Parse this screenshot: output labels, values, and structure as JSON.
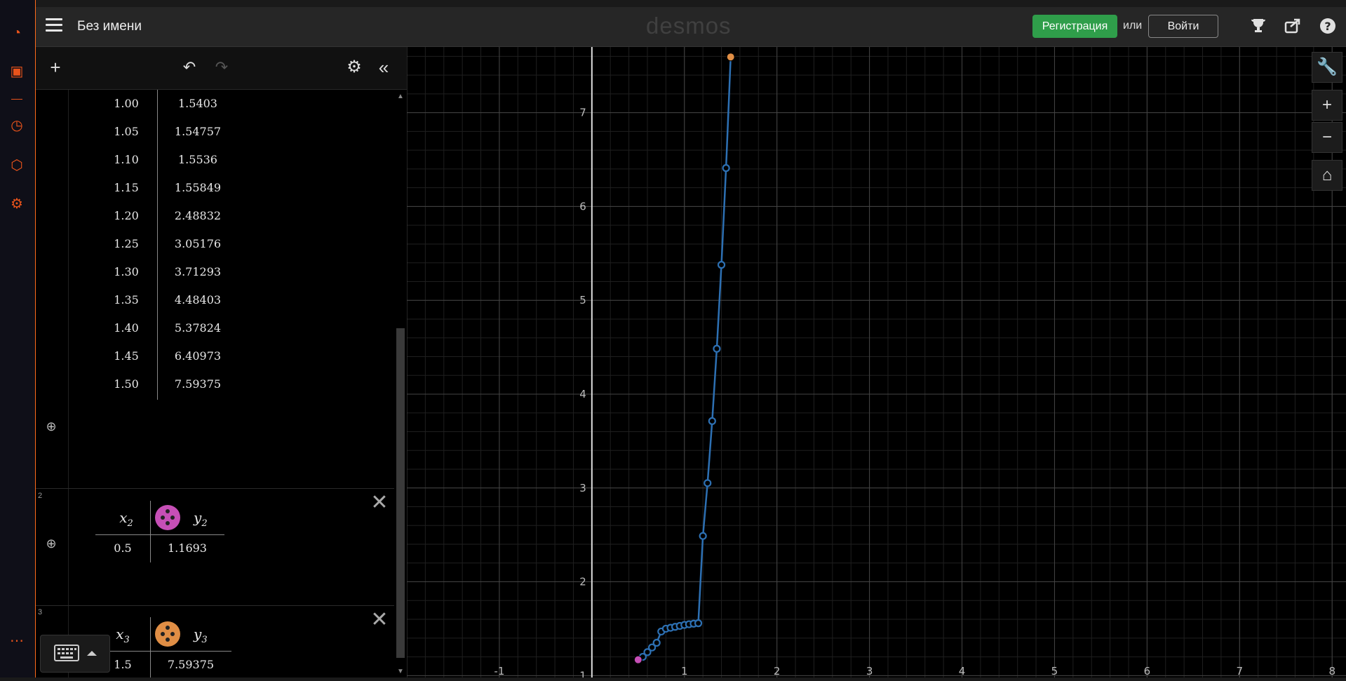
{
  "side_rail": {
    "icons": [
      "speedometer-icon",
      "twitch-icon",
      "history-icon",
      "cube-icon",
      "gear-icon",
      "more-icon"
    ]
  },
  "topbar": {
    "doc_title": "Без имени",
    "brand": "desmos",
    "signup_label": "Регистрация",
    "or_label": "или",
    "login_label": "Войти"
  },
  "expr1": {
    "rows": [
      {
        "x": "1.00",
        "y": "1.5403"
      },
      {
        "x": "1.05",
        "y": "1.54757"
      },
      {
        "x": "1.10",
        "y": "1.5536"
      },
      {
        "x": "1.15",
        "y": "1.55849"
      },
      {
        "x": "1.20",
        "y": "2.48832"
      },
      {
        "x": "1.25",
        "y": "3.05176"
      },
      {
        "x": "1.30",
        "y": "3.71293"
      },
      {
        "x": "1.35",
        "y": "4.48403"
      },
      {
        "x": "1.40",
        "y": "5.37824"
      },
      {
        "x": "1.45",
        "y": "6.40973"
      },
      {
        "x": "1.50",
        "y": "7.59375"
      }
    ]
  },
  "expr2": {
    "number": "2",
    "x_header": "x",
    "x_sub": "2",
    "y_header": "y",
    "y_sub": "2",
    "color": "#c64fb6",
    "row": {
      "x": "0.5",
      "y": "1.1693"
    }
  },
  "expr3": {
    "number": "3",
    "x_header": "x",
    "x_sub": "3",
    "y_header": "y",
    "y_sub": "3",
    "color": "#e08e45",
    "row": {
      "x": "1.5",
      "y": "7.59375"
    }
  },
  "chart_data": {
    "type": "scatter",
    "x_ticks": [
      "-1",
      "1",
      "2",
      "3",
      "4",
      "5",
      "6",
      "7",
      "8"
    ],
    "y_ticks": [
      "1",
      "2",
      "3",
      "4",
      "5",
      "6",
      "7"
    ],
    "xlim": [
      -2,
      8.15
    ],
    "ylim": [
      0.98,
      7.7
    ],
    "grid": true,
    "series": [
      {
        "color": "#2d70b3",
        "connected": true,
        "x": [
          0.55,
          0.6,
          0.65,
          0.7,
          0.75,
          0.8,
          0.85,
          0.9,
          0.95,
          1.0,
          1.05,
          1.1,
          1.15,
          1.2,
          1.25,
          1.3,
          1.35,
          1.4,
          1.45,
          1.5
        ],
        "y": [
          1.2,
          1.25,
          1.3,
          1.35,
          1.47,
          1.5,
          1.51,
          1.52,
          1.53,
          1.5403,
          1.54757,
          1.5536,
          1.55849,
          2.48832,
          3.05176,
          3.71293,
          4.48403,
          5.37824,
          6.40973,
          7.59375
        ]
      },
      {
        "color": "#c64fb6",
        "connected": false,
        "x": [
          0.5
        ],
        "y": [
          1.1693
        ]
      },
      {
        "color": "#e08e45",
        "connected": false,
        "x": [
          1.5
        ],
        "y": [
          7.59375
        ]
      }
    ]
  }
}
